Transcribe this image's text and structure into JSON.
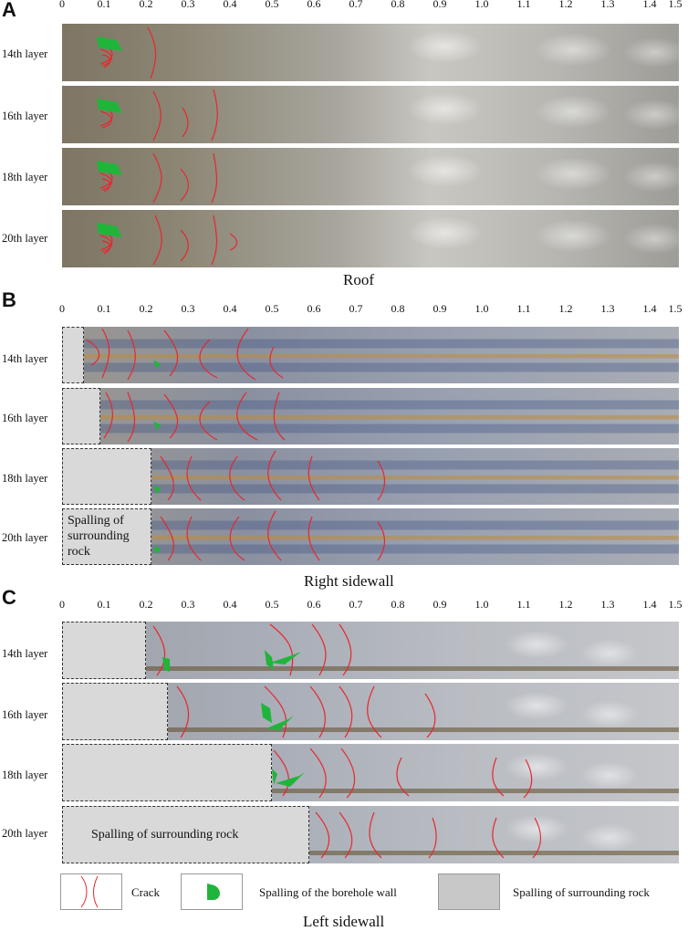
{
  "panels": {
    "A": {
      "letter": "A",
      "title": "Roof"
    },
    "B": {
      "letter": "B",
      "title": "Right sidewall"
    },
    "C": {
      "letter": "C",
      "title": "Left sidewall"
    }
  },
  "ticks": [
    "0",
    "0.1",
    "0.2",
    "0.3",
    "0.4",
    "0.5",
    "0.6",
    "0.7",
    "0.8",
    "0.9",
    "1.0",
    "1.1",
    "1.2",
    "1.3",
    "1.4",
    "1.5"
  ],
  "layers": [
    "14th layer",
    "16th layer",
    "18th layer",
    "20th layer"
  ],
  "spalling_depth": {
    "right_sidewall": [
      0.05,
      0.09,
      0.21,
      0.21
    ],
    "left_sidewall": [
      0.2,
      0.25,
      0.5,
      0.59
    ]
  },
  "spalling_label": {
    "right": "Spalling of surrounding rock",
    "left": "Spalling of surrounding rock"
  },
  "legend": {
    "crack": "Crack",
    "borehole": "Spalling of  the borehole wall",
    "rock": "Spalling of  surrounding rock"
  },
  "colors": {
    "crack": "#e8262e",
    "borehole_spall": "#1fb53a",
    "rock_spall": "#d9d9d9"
  }
}
